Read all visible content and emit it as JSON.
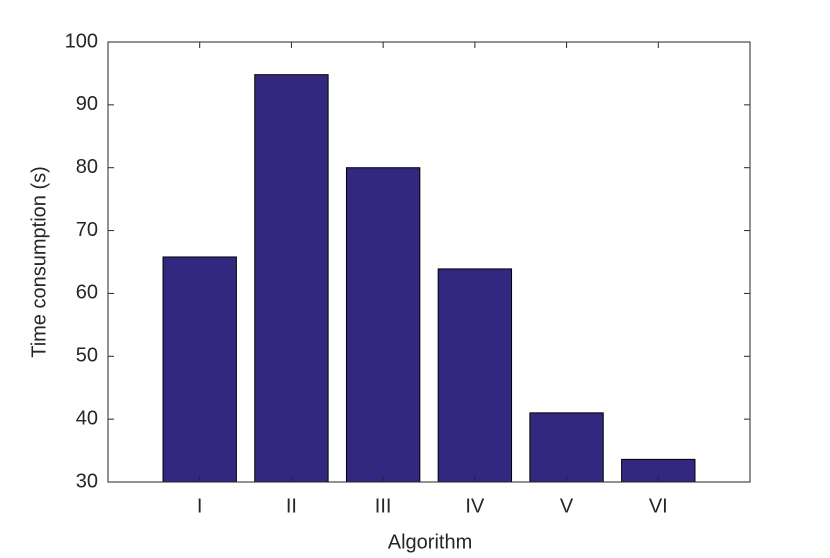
{
  "chart_data": {
    "type": "bar",
    "x_label": "Algorithm",
    "y_label": "Time consumption (s)",
    "categories": [
      "I",
      "II",
      "III",
      "IV",
      "V",
      "VI"
    ],
    "values": [
      65.8,
      94.8,
      80,
      63.9,
      41,
      33.6
    ],
    "color": "#332880",
    "ylim": [
      30,
      100
    ],
    "yticks": [
      30,
      40,
      50,
      60,
      70,
      80,
      90,
      100
    ]
  }
}
